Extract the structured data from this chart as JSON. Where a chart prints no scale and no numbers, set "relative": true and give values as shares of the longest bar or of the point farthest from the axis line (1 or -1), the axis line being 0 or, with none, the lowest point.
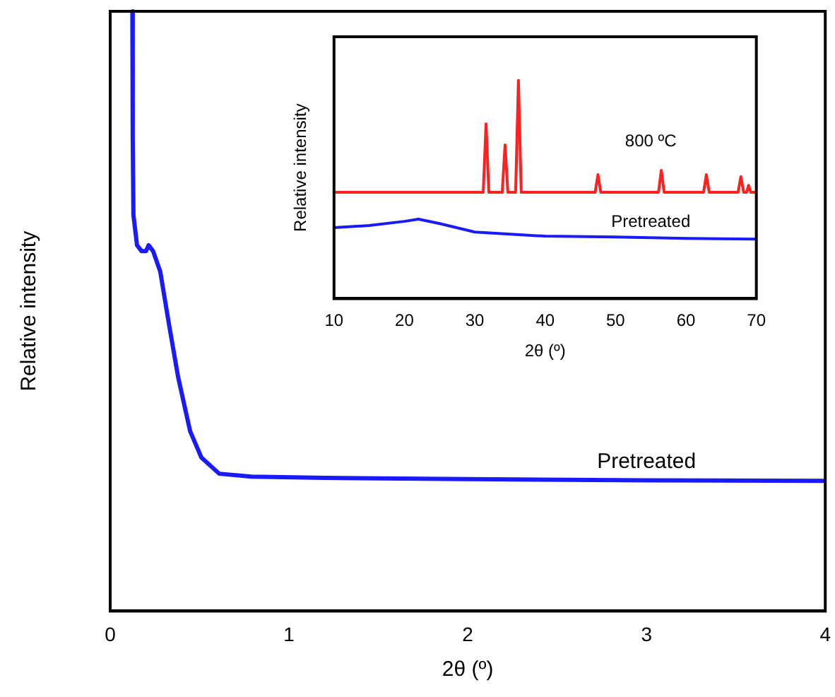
{
  "chart_data": [
    {
      "type": "line",
      "xlabel": "2θ (º)",
      "ylabel": "Relative intensity",
      "relative": true,
      "xlim": [
        0,
        4
      ],
      "xticks": [
        0,
        1,
        2,
        3,
        4
      ],
      "legend": false,
      "grid": false,
      "marker": "none",
      "series": [
        {
          "name": "Pretreated",
          "color": "#1a1aff",
          "x": [
            0.124,
            0.126,
            0.13,
            0.15,
            0.176,
            0.2,
            0.215,
            0.24,
            0.28,
            0.33,
            0.38,
            0.447,
            0.51,
            0.61,
            0.79,
            1.2,
            2,
            3,
            4
          ],
          "values": [
            1.0,
            0.79,
            0.66,
            0.61,
            0.6,
            0.6,
            0.61,
            0.6,
            0.566,
            0.476,
            0.39,
            0.3,
            0.256,
            0.229,
            0.224,
            0.222,
            0.22,
            0.218,
            0.217
          ]
        }
      ]
    },
    {
      "type": "line",
      "xlabel": "2θ (º)",
      "ylabel": "Relative intensity",
      "relative": true,
      "xlim": [
        10,
        70
      ],
      "xticks": [
        10,
        20,
        30,
        40,
        50,
        60,
        70
      ],
      "legend": false,
      "grid": false,
      "marker": "none",
      "series": [
        {
          "name": "800 ºC",
          "color": "#ff2020",
          "x": [
            10,
            31.2,
            31.6,
            32.0,
            33.9,
            34.3,
            34.7,
            35.8,
            36.2,
            36.6,
            47.1,
            47.5,
            47.9,
            56.1,
            56.5,
            56.9,
            62.5,
            62.9,
            63.3,
            67.4,
            67.8,
            68.2,
            68.6,
            68.9,
            69.2,
            70
          ],
          "values": [
            0.487,
            0.487,
            0.801,
            0.487,
            0.487,
            0.704,
            0.487,
            0.487,
            1,
            0.487,
            0.487,
            0.568,
            0.487,
            0.487,
            0.588,
            0.487,
            0.487,
            0.568,
            0.487,
            0.487,
            0.559,
            0.487,
            0.487,
            0.519,
            0.487,
            0.487
          ]
        },
        {
          "name": "Pretreated",
          "color": "#1a1aff",
          "x": [
            10,
            15,
            20,
            22,
            25,
            30,
            40,
            50,
            60,
            70
          ],
          "values": [
            0.325,
            0.335,
            0.354,
            0.364,
            0.344,
            0.305,
            0.286,
            0.282,
            0.276,
            0.273
          ]
        }
      ]
    }
  ]
}
